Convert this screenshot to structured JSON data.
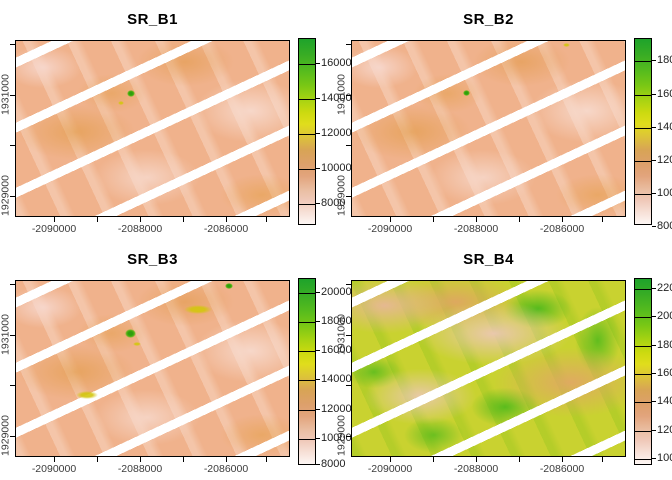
{
  "figure": {
    "type": "raster-multipanel-plot",
    "panels": [
      {
        "title": "SR_B1",
        "x_tick_labels": [
          "-2090000",
          "-2088000",
          "-2086000"
        ],
        "y_tick_labels": [
          "1931000",
          "1929000"
        ],
        "legend_labels": [
          "16000",
          "14000",
          "12000",
          "10000",
          "8000"
        ]
      },
      {
        "title": "SR_B2",
        "x_tick_labels": [
          "-2090000",
          "-2088000",
          "-2086000"
        ],
        "y_tick_labels": [
          "1931000",
          "1929000"
        ],
        "legend_labels": [
          "18000",
          "16000",
          "14000",
          "12000",
          "10000",
          "8000"
        ]
      },
      {
        "title": "SR_B3",
        "x_tick_labels": [
          "-2090000",
          "-2088000",
          "-2086000"
        ],
        "y_tick_labels": [
          "1931000",
          "1929000"
        ],
        "legend_labels": [
          "20000",
          "18000",
          "16000",
          "14000",
          "12000",
          "10000",
          "8000"
        ]
      },
      {
        "title": "SR_B4",
        "x_tick_labels": [
          "-2090000",
          "-2088000",
          "-2086000"
        ],
        "y_tick_labels": [
          "1931000",
          "1929000"
        ],
        "legend_labels": [
          "22000",
          "20000",
          "18000",
          "16000",
          "14000",
          "12000",
          "10000"
        ]
      }
    ],
    "colors": {
      "background": "#ffffff",
      "panel_border": "#000000",
      "axis_text": "#3b3b3b",
      "gap_stripes": "#ffffff",
      "raster_base_b1_b3": "#f0b28c",
      "raster_base_b4": "#c9d230",
      "legend_gradient_top_to_bottom": [
        "#1ea32b",
        "#55bb1e",
        "#a8d312",
        "#e0dd1c",
        "#d8a455",
        "#e2a47c",
        "#efc8b8",
        "#fdf6f4"
      ]
    }
  },
  "chart_data": [
    {
      "type": "heatmap",
      "title": "SR_B1",
      "xlabel": "",
      "ylabel": "",
      "x_ticks": [
        -2090000,
        -2088000,
        -2086000
      ],
      "y_ticks": [
        1929000,
        1931000
      ],
      "x_range_approx": [
        -2090900,
        -2084300
      ],
      "y_range_approx": [
        1928600,
        1932100
      ],
      "legend_ticks": [
        8000,
        10000,
        12000,
        14000,
        16000
      ],
      "palette_low_to_high": [
        "#ffffff",
        "#efc8b8",
        "#e2a47c",
        "#d8a455",
        "#e0dd1c",
        "#a8d312",
        "#55bb1e",
        "#1ea32b"
      ],
      "notes": "mostly low reflectance (pale pink/salmon) with diagonal white no-data gap stripes and a tiny high-value green spot left of center"
    },
    {
      "type": "heatmap",
      "title": "SR_B2",
      "xlabel": "",
      "ylabel": "",
      "x_ticks": [
        -2090000,
        -2088000,
        -2086000
      ],
      "y_ticks": [
        1929000,
        1931000
      ],
      "x_range_approx": [
        -2090900,
        -2084300
      ],
      "y_range_approx": [
        1928600,
        1932100
      ],
      "legend_ticks": [
        8000,
        10000,
        12000,
        14000,
        16000,
        18000
      ],
      "palette_low_to_high": [
        "#ffffff",
        "#efc8b8",
        "#e2a47c",
        "#d8a455",
        "#e0dd1c",
        "#a8d312",
        "#55bb1e",
        "#1ea32b"
      ],
      "notes": "mostly low reflectance (salmon) with diagonal white gap stripes, tiny green spot left of center and small yellow spot near top right"
    },
    {
      "type": "heatmap",
      "title": "SR_B3",
      "xlabel": "",
      "ylabel": "",
      "x_ticks": [
        -2090000,
        -2088000,
        -2086000
      ],
      "y_ticks": [
        1929000,
        1931000
      ],
      "x_range_approx": [
        -2090900,
        -2084300
      ],
      "y_range_approx": [
        1928600,
        1932100
      ],
      "legend_ticks": [
        8000,
        10000,
        12000,
        14000,
        16000,
        18000,
        20000
      ],
      "palette_low_to_high": [
        "#ffffff",
        "#efc8b8",
        "#e2a47c",
        "#d8a455",
        "#e0dd1c",
        "#a8d312",
        "#55bb1e",
        "#1ea32b"
      ],
      "notes": "salmon raster with stronger orange/yellow mottling, diagonal white gap stripes, green spots left of center and near top right"
    },
    {
      "type": "heatmap",
      "title": "SR_B4",
      "xlabel": "",
      "ylabel": "",
      "x_ticks": [
        -2090000,
        -2088000,
        -2086000
      ],
      "y_ticks": [
        1929000,
        1931000
      ],
      "x_range_approx": [
        -2090900,
        -2084300
      ],
      "y_range_approx": [
        1928600,
        1932100
      ],
      "legend_ticks": [
        10000,
        12000,
        14000,
        16000,
        18000,
        20000,
        22000
      ],
      "palette_low_to_high": [
        "#ffffff",
        "#efc8b8",
        "#e2a47c",
        "#d8a455",
        "#e0dd1c",
        "#a8d312",
        "#55bb1e",
        "#1ea32b"
      ],
      "notes": "mid-to-high values: yellow-green base with orange-tan and pale pink patches and many bright green vegetation patches; diagonal white gap stripes"
    }
  ]
}
